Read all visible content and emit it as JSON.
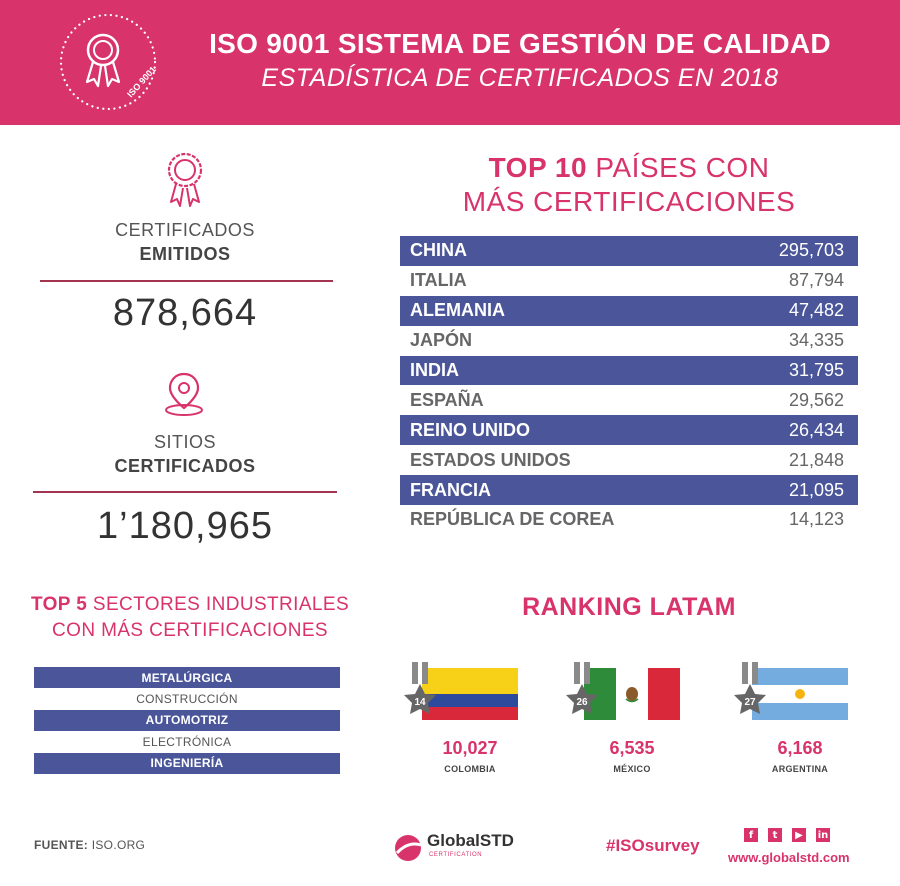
{
  "header": {
    "title": "ISO 9001 SISTEMA DE GESTIÓN DE CALIDAD",
    "subtitle": "ESTADÍSTICA DE CERTIFICADOS EN 2018",
    "badge_text": "ISO 9001"
  },
  "stats": [
    {
      "icon": "award-icon",
      "label": "CERTIFICADOS",
      "label_bold": "EMITIDOS",
      "value": "878,664"
    },
    {
      "icon": "location-pin-icon",
      "label": "SITIOS",
      "label_bold": "CERTIFICADOS",
      "value": "1’180,965"
    }
  ],
  "top10": {
    "title_bold": "TOP 10",
    "title_rest": " PAÍSES CON",
    "title_line2": "MÁS CERTIFICACIONES",
    "rows": [
      {
        "country": "CHINA",
        "value": "295,703"
      },
      {
        "country": "ITALIA",
        "value": "87,794"
      },
      {
        "country": "ALEMANIA",
        "value": "47,482"
      },
      {
        "country": "JAPÓN",
        "value": "34,335"
      },
      {
        "country": "INDIA",
        "value": "31,795"
      },
      {
        "country": "ESPAÑA",
        "value": "29,562"
      },
      {
        "country": "REINO UNIDO",
        "value": "26,434"
      },
      {
        "country": "ESTADOS UNIDOS",
        "value": "21,848"
      },
      {
        "country": "FRANCIA",
        "value": "21,095"
      },
      {
        "country": "REPÚBLICA DE COREA",
        "value": "14,123"
      }
    ]
  },
  "sectors": {
    "title_bold": "TOP 5",
    "title_rest": " SECTORES INDUSTRIALES",
    "title_line2": "CON MÁS CERTIFICACIONES",
    "items": [
      "METALÚRGICA",
      "CONSTRUCCIÓN",
      "AUTOMOTRIZ",
      "ELECTRÓNICA",
      "INGENIERÍA"
    ]
  },
  "latam": {
    "title": "RANKING LATAM",
    "countries": [
      {
        "rank": "14",
        "value": "10,027",
        "name": "COLOMBIA",
        "flag": "colombia-flag-icon"
      },
      {
        "rank": "26",
        "value": "6,535",
        "name": "MÉXICO",
        "flag": "mexico-flag-icon"
      },
      {
        "rank": "27",
        "value": "6,168",
        "name": "ARGENTINA",
        "flag": "argentina-flag-icon"
      }
    ]
  },
  "footer": {
    "source_label": "FUENTE:",
    "source_value": " ISO.ORG",
    "logo_text": "GlobalSTD",
    "logo_sub": "CERTIFICATION",
    "hashtag": "#ISOsurvey",
    "social": [
      "f",
      "t",
      "▶",
      "in"
    ],
    "website": "www.globalstd.com"
  },
  "colors": {
    "brand_pink": "#d8336b",
    "table_blue": "#4a5699",
    "rule_red": "#a3344f"
  }
}
